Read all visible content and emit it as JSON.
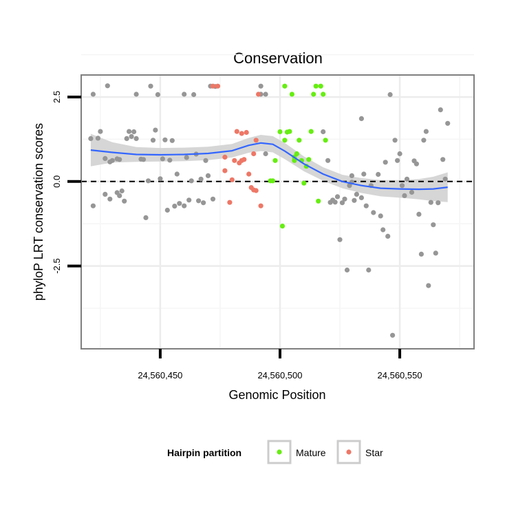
{
  "chart_data": {
    "type": "scatter",
    "title": "Conservation",
    "xlabel": "Genomic Position",
    "ylabel": "phyloP LRT conservation scores",
    "xlim": [
      24560417,
      24560581
    ],
    "ylim": [
      -4.95,
      3.15
    ],
    "x_ticks": [
      24560450,
      24560500,
      24560550
    ],
    "x_tick_labels": [
      "24,560,450",
      "24,560,500",
      "24,560,550"
    ],
    "y_ticks": [
      -2.5,
      0.0,
      2.5
    ],
    "y_tick_labels": [
      "-2.5",
      "0.0",
      "2.5"
    ],
    "reference_line": {
      "y": 0,
      "style": "dashed"
    },
    "grid": true,
    "legend": {
      "title": "Hairpin partition",
      "position": "bottom",
      "entries": [
        {
          "label": "Mature",
          "color": "#66ee11"
        },
        {
          "label": "Star",
          "color": "#ee7766"
        }
      ]
    },
    "colors": {
      "other": "#969696",
      "Mature": "#66ee11",
      "Star": "#ee7766",
      "smooth": "#3366ff",
      "band": "#d2d2d2"
    },
    "series": [
      {
        "name": "Other",
        "color": "#969696",
        "points": [
          [
            24560421,
            1.27
          ],
          [
            24560422,
            2.58
          ],
          [
            24560422,
            -0.72
          ],
          [
            24560424,
            1.28
          ],
          [
            24560425,
            1.48
          ],
          [
            24560427,
            0.68
          ],
          [
            24560427,
            -0.38
          ],
          [
            24560428,
            2.83
          ],
          [
            24560429,
            0.58
          ],
          [
            24560429,
            -0.52
          ],
          [
            24560430,
            0.62
          ],
          [
            24560432,
            -0.33
          ],
          [
            24560432,
            0.67
          ],
          [
            24560433,
            0.65
          ],
          [
            24560433,
            -0.42
          ],
          [
            24560434,
            -0.28
          ],
          [
            24560435,
            -0.58
          ],
          [
            24560436,
            1.27
          ],
          [
            24560437,
            1.48
          ],
          [
            24560438,
            1.33
          ],
          [
            24560439,
            1.47
          ],
          [
            24560440,
            2.58
          ],
          [
            24560440,
            1.27
          ],
          [
            24560442,
            0.66
          ],
          [
            24560443,
            0.65
          ],
          [
            24560444,
            -1.07
          ],
          [
            24560445,
            0.02
          ],
          [
            24560446,
            2.82
          ],
          [
            24560447,
            1.22
          ],
          [
            24560448,
            1.52
          ],
          [
            24560449,
            2.57
          ],
          [
            24560450,
            0.08
          ],
          [
            24560451,
            0.67
          ],
          [
            24560452,
            1.23
          ],
          [
            24560453,
            -0.85
          ],
          [
            24560454,
            0.63
          ],
          [
            24560455,
            1.21
          ],
          [
            24560456,
            -0.73
          ],
          [
            24560457,
            0.22
          ],
          [
            24560458,
            -0.65
          ],
          [
            24560460,
            -0.72
          ],
          [
            24560460,
            2.58
          ],
          [
            24560461,
            0.71
          ],
          [
            24560462,
            -0.55
          ],
          [
            24560463,
            0.02
          ],
          [
            24560464,
            2.57
          ],
          [
            24560465,
            0.81
          ],
          [
            24560466,
            -0.57
          ],
          [
            24560467,
            0.07
          ],
          [
            24560468,
            -0.63
          ],
          [
            24560469,
            0.62
          ],
          [
            24560470,
            0.17
          ],
          [
            24560471,
            2.82
          ],
          [
            24560472,
            -0.52
          ],
          [
            24560473,
            2.81
          ],
          [
            24560492,
            2.82
          ],
          [
            24560492,
            2.58
          ],
          [
            24560494,
            2.58
          ],
          [
            24560494,
            0.82
          ],
          [
            24560518,
            1.47
          ],
          [
            24560520,
            0.62
          ],
          [
            24560521,
            -0.62
          ],
          [
            24560522,
            -0.55
          ],
          [
            24560523,
            -0.61
          ],
          [
            24560524,
            -0.45
          ],
          [
            24560525,
            -1.72
          ],
          [
            24560526,
            -0.63
          ],
          [
            24560527,
            -0.52
          ],
          [
            24560528,
            -2.62
          ],
          [
            24560529,
            -0.12
          ],
          [
            24560530,
            -0.02
          ],
          [
            24560530,
            0.17
          ],
          [
            24560531,
            -0.56
          ],
          [
            24560532,
            -0.38
          ],
          [
            24560534,
            1.86
          ],
          [
            24560534,
            -0.48
          ],
          [
            24560535,
            0.22
          ],
          [
            24560536,
            -0.72
          ],
          [
            24560537,
            -2.62
          ],
          [
            24560538,
            -0.12
          ],
          [
            24560539,
            -0.92
          ],
          [
            24560541,
            0.21
          ],
          [
            24560542,
            -1.02
          ],
          [
            24560543,
            -1.43
          ],
          [
            24560544,
            0.57
          ],
          [
            24560545,
            -1.62
          ],
          [
            24560546,
            2.57
          ],
          [
            24560547,
            -4.55
          ],
          [
            24560548,
            1.22
          ],
          [
            24560549,
            0.62
          ],
          [
            24560550,
            0.82
          ],
          [
            24560551,
            -0.12
          ],
          [
            24560552,
            -0.42
          ],
          [
            24560553,
            0.07
          ],
          [
            24560555,
            -0.32
          ],
          [
            24560556,
            0.61
          ],
          [
            24560557,
            0.52
          ],
          [
            24560558,
            -0.97
          ],
          [
            24560559,
            -2.15
          ],
          [
            24560560,
            1.22
          ],
          [
            24560561,
            1.48
          ],
          [
            24560562,
            -3.08
          ],
          [
            24560563,
            -0.62
          ],
          [
            24560564,
            -1.28
          ],
          [
            24560565,
            -2.12
          ],
          [
            24560566,
            -0.63
          ],
          [
            24560567,
            2.12
          ],
          [
            24560568,
            0.65
          ],
          [
            24560569,
            0.07
          ],
          [
            24560570,
            1.72
          ]
        ]
      },
      {
        "name": "Star",
        "color": "#ee7766",
        "points": [
          [
            24560472,
            2.82
          ],
          [
            24560474,
            2.82
          ],
          [
            24560477,
            0.72
          ],
          [
            24560477,
            0.32
          ],
          [
            24560479,
            -0.62
          ],
          [
            24560480,
            0.05
          ],
          [
            24560481,
            0.62
          ],
          [
            24560482,
            1.48
          ],
          [
            24560483,
            0.55
          ],
          [
            24560484,
            1.42
          ],
          [
            24560484,
            0.62
          ],
          [
            24560485,
            0.65
          ],
          [
            24560486,
            1.45
          ],
          [
            24560487,
            0.22
          ],
          [
            24560488,
            -0.18
          ],
          [
            24560489,
            0.82
          ],
          [
            24560489,
            -0.25
          ],
          [
            24560490,
            -0.27
          ],
          [
            24560490,
            1.22
          ],
          [
            24560491,
            2.58
          ],
          [
            24560492,
            -0.72
          ]
        ]
      },
      {
        "name": "Mature",
        "color": "#66ee11",
        "points": [
          [
            24560496,
            0.02
          ],
          [
            24560497,
            0.02
          ],
          [
            24560498,
            0.62
          ],
          [
            24560500,
            1.47
          ],
          [
            24560501,
            -1.32
          ],
          [
            24560502,
            1.22
          ],
          [
            24560502,
            2.82
          ],
          [
            24560503,
            1.46
          ],
          [
            24560504,
            1.48
          ],
          [
            24560505,
            2.58
          ],
          [
            24560506,
            0.62
          ],
          [
            24560506,
            0.72
          ],
          [
            24560507,
            0.82
          ],
          [
            24560508,
            1.22
          ],
          [
            24560509,
            0.62
          ],
          [
            24560510,
            -0.05
          ],
          [
            24560511,
            0.45
          ],
          [
            24560512,
            0.65
          ],
          [
            24560513,
            1.48
          ],
          [
            24560514,
            2.58
          ],
          [
            24560515,
            2.82
          ],
          [
            24560516,
            -0.58
          ],
          [
            24560517,
            2.82
          ],
          [
            24560518,
            2.58
          ],
          [
            24560519,
            1.22
          ]
        ]
      }
    ],
    "smooth": {
      "method": "loess",
      "x": [
        24560421,
        24560430,
        24560440,
        24560450,
        24560460,
        24560470,
        24560480,
        24560487,
        24560492,
        24560497,
        24560502,
        24560510,
        24560518,
        24560526,
        24560534,
        24560542,
        24560550,
        24560558,
        24560564,
        24560570
      ],
      "y": [
        0.93,
        0.86,
        0.8,
        0.79,
        0.8,
        0.83,
        0.91,
        1.07,
        1.14,
        1.1,
        0.9,
        0.52,
        0.22,
        0.0,
        -0.12,
        -0.2,
        -0.22,
        -0.23,
        -0.22,
        -0.17
      ],
      "se_halfwidth": [
        0.48,
        0.3,
        0.22,
        0.2,
        0.2,
        0.2,
        0.2,
        0.22,
        0.24,
        0.24,
        0.24,
        0.22,
        0.2,
        0.2,
        0.22,
        0.24,
        0.26,
        0.3,
        0.36,
        0.44
      ]
    }
  }
}
